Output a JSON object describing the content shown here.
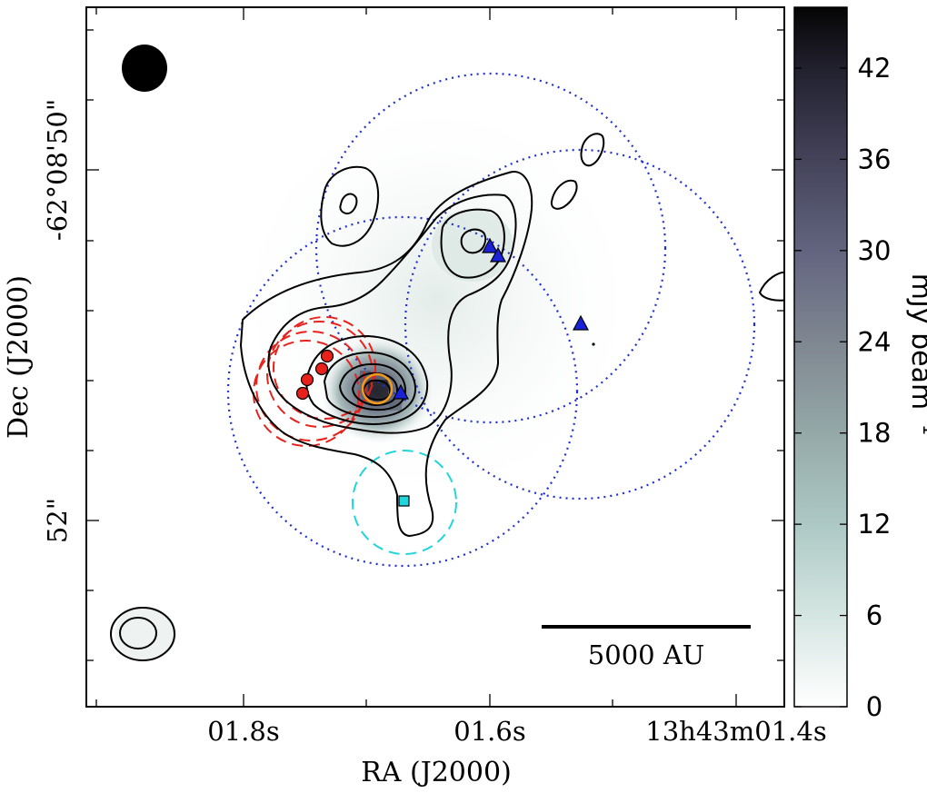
{
  "chart_data": {
    "type": "contour",
    "xlabel": "RA (J2000)",
    "ylabel": "Dec (J2000)",
    "x_ticks": [
      "01.8s",
      "01.6s",
      "13h43m01.4s"
    ],
    "y_ticks": [
      "-62°08'50\"",
      "52\""
    ],
    "colorbar": {
      "label": "mJy beam",
      "label_sup": "−1",
      "ticks": [
        0,
        6,
        12,
        18,
        24,
        30,
        36,
        42
      ],
      "range": [
        0,
        46
      ]
    },
    "scale_bar": {
      "label": "5000 AU"
    },
    "colors": {
      "triangles": "#1a22d8",
      "circles": "#e8211a",
      "square": "#22d4dc",
      "source_ring": "#f29a1a",
      "dotted_circles": "#1f2fd0",
      "dashed_red": "#e8211a",
      "dashed_cyan": "#22d4dc"
    }
  }
}
